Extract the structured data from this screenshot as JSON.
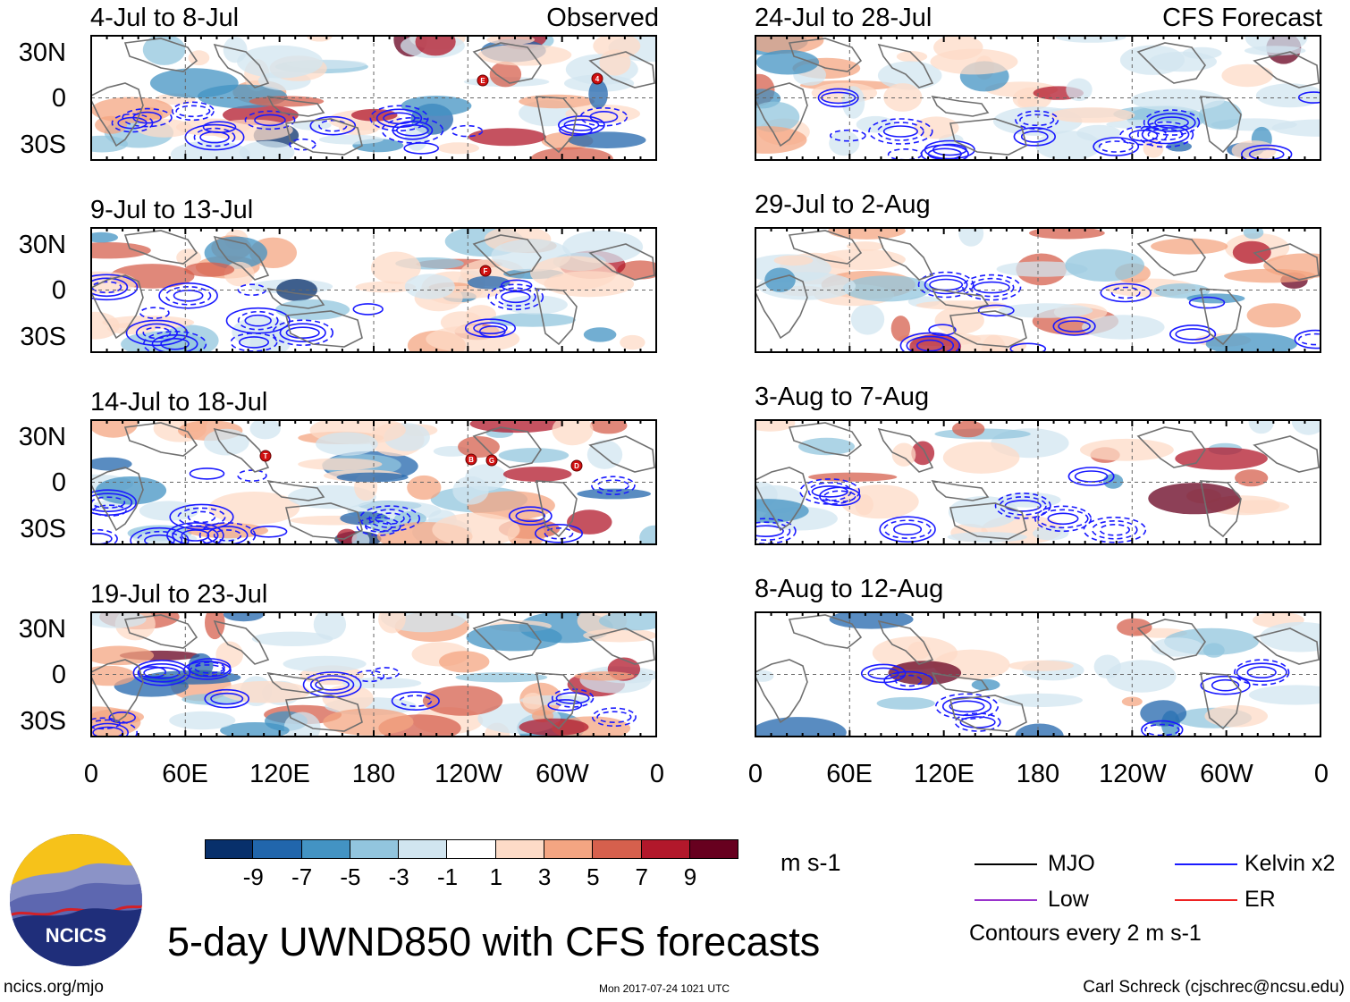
{
  "figure": {
    "title": "5-day UWND850 with CFS forecasts",
    "left_column_label": "Observed",
    "right_column_label": "CFS Forecast",
    "units": "m s-1",
    "website": "ncics.org/mjo",
    "timestamp": "Mon 2017-07-24 1021 UTC",
    "author": "Carl Schreck (cjschrec@ncsu.edu)",
    "logo_text": "NCICS"
  },
  "panels": {
    "observed": [
      {
        "period": "4-Jul to 8-Jul"
      },
      {
        "period": "9-Jul to 13-Jul"
      },
      {
        "period": "14-Jul to 18-Jul"
      },
      {
        "period": "19-Jul to 23-Jul"
      }
    ],
    "forecast": [
      {
        "period": "24-Jul to 28-Jul"
      },
      {
        "period": "29-Jul to 2-Aug"
      },
      {
        "period": "3-Aug to 7-Aug"
      },
      {
        "period": "8-Aug to 12-Aug"
      }
    ]
  },
  "axes": {
    "y_ticks": [
      "30N",
      "0",
      "30S"
    ],
    "x_ticks": [
      "0",
      "60E",
      "120E",
      "180",
      "120W",
      "60W",
      "0"
    ]
  },
  "colorbar": {
    "labels": [
      "-9",
      "-7",
      "-5",
      "-3",
      "-1",
      "1",
      "3",
      "5",
      "7",
      "9"
    ],
    "colors": [
      "#08306b",
      "#2166ac",
      "#4393c3",
      "#92c5de",
      "#d1e5f0",
      "#ffffff",
      "#fddbc7",
      "#f4a582",
      "#d6604d",
      "#b2182b",
      "#67001f"
    ]
  },
  "legend": {
    "items": [
      {
        "label": "MJO",
        "color": "#000000"
      },
      {
        "label": "Kelvin x2",
        "color": "#1a1aff"
      },
      {
        "label": "Low",
        "color": "#9933cc"
      },
      {
        "label": "ER",
        "color": "#ee2222"
      }
    ],
    "note": "Contours every 2 m s-1"
  },
  "storm_markers": {
    "panel1": [
      "E",
      "4"
    ],
    "panel2": [
      "F"
    ],
    "panel3": [
      "T",
      "B",
      "G",
      "D"
    ]
  }
}
